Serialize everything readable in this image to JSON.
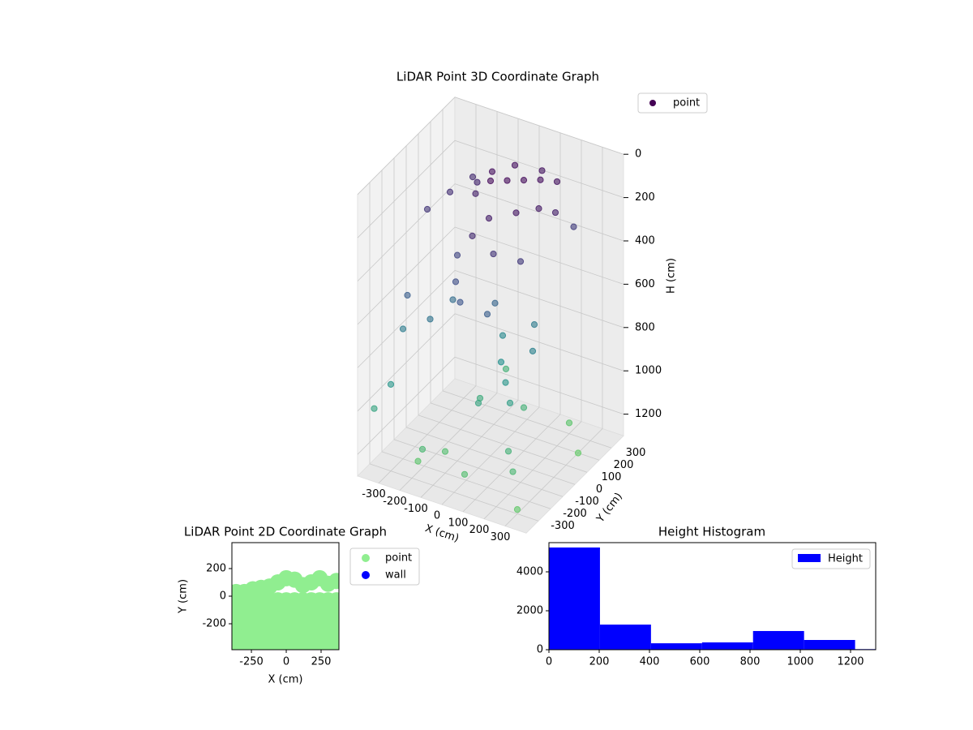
{
  "chart_data": [
    {
      "type": "scatter3d",
      "title": "LiDAR Point 3D Coordinate Graph",
      "xlabel": "X (cm)",
      "ylabel": "Y (cm)",
      "zlabel": "H (cm)",
      "xlim": [
        -400,
        400
      ],
      "ylim": [
        -400,
        400
      ],
      "zlim": [
        0,
        1300
      ],
      "zinverted": true,
      "xticks": [
        -300,
        -200,
        -100,
        0,
        100,
        200,
        300
      ],
      "yticks": [
        -300,
        -200,
        -100,
        0,
        100,
        200,
        300
      ],
      "zticks": [
        0,
        200,
        400,
        600,
        800,
        1000,
        1200
      ],
      "colormap": "viridis",
      "legend": "upper right",
      "series": [
        {
          "name": "point",
          "color": "#440154",
          "x": [
            0,
            50,
            100,
            150,
            200,
            -50,
            0,
            100,
            150,
            200,
            250,
            50,
            -100,
            -150,
            -200,
            -250,
            -300,
            0,
            100,
            200,
            250,
            -100,
            -50,
            0,
            100,
            50,
            -150,
            -200,
            150,
            200,
            0,
            -250,
            -300,
            50,
            100,
            150,
            0,
            -50,
            200,
            250,
            -100,
            -200,
            300,
            50,
            -150,
            -300,
            -350,
            100,
            200,
            300,
            -100
          ],
          "y": [
            0,
            50,
            100,
            150,
            200,
            100,
            200,
            250,
            -50,
            50,
            100,
            -100,
            50,
            150,
            200,
            100,
            0,
            -150,
            -150,
            -100,
            250,
            -100,
            -200,
            -250,
            -200,
            -50,
            -50,
            -150,
            100,
            0,
            100,
            -250,
            -200,
            0,
            -50,
            -100,
            -100,
            0,
            -200,
            -250,
            -200,
            -250,
            -300,
            -300,
            -300,
            -300,
            -350,
            100,
            300,
            200,
            300
          ],
          "values": [
            30,
            40,
            50,
            60,
            80,
            60,
            70,
            90,
            100,
            120,
            150,
            130,
            150,
            170,
            190,
            220,
            260,
            200,
            250,
            280,
            300,
            350,
            400,
            450,
            500,
            550,
            600,
            650,
            700,
            750,
            800,
            500,
            700,
            850,
            900,
            950,
            1000,
            1050,
            1100,
            1150,
            1200,
            1250,
            1280,
            1200,
            1150,
            900,
            1000,
            1100,
            1250,
            1300,
            1100
          ]
        }
      ]
    },
    {
      "type": "scatter",
      "title": "LiDAR Point 2D Coordinate Graph",
      "xlabel": "X (cm)",
      "ylabel": "Y (cm)",
      "xlim": [
        -390,
        378
      ],
      "ylim": [
        -388,
        388
      ],
      "xticks": [
        -250,
        0,
        250
      ],
      "yticks": [
        -200,
        0,
        200
      ],
      "legend": "outside right",
      "series": [
        {
          "name": "point",
          "color": "#90ee90",
          "x": [
            -360,
            -360,
            -360,
            -360,
            -360,
            -360,
            -300,
            -300,
            -300,
            -300,
            -300,
            -300,
            -240,
            -240,
            -240,
            -240,
            -240,
            -240,
            -180,
            -180,
            -180,
            -180,
            -180,
            -180,
            -120,
            -120,
            -120,
            -120,
            -120,
            -120,
            -60,
            -60,
            -60,
            -60,
            -60,
            -60,
            0,
            0,
            0,
            0,
            0,
            0,
            60,
            60,
            60,
            60,
            60,
            60,
            120,
            120,
            120,
            120,
            120,
            120,
            180,
            180,
            180,
            180,
            180,
            180,
            240,
            240,
            240,
            240,
            240,
            240,
            300,
            300,
            300,
            300,
            300,
            300,
            360,
            360,
            360,
            360,
            360,
            360
          ],
          "values": [
            -350,
            -270,
            -190,
            -110,
            -30,
            30,
            -350,
            -270,
            -190,
            -110,
            -30,
            30,
            -350,
            -270,
            -190,
            -110,
            -30,
            50,
            -350,
            -270,
            -190,
            -110,
            -30,
            60,
            -350,
            -270,
            -190,
            -110,
            -30,
            70,
            -350,
            -270,
            -190,
            -110,
            -30,
            100,
            -350,
            -270,
            -190,
            -110,
            -30,
            130,
            -350,
            -270,
            -190,
            -110,
            -30,
            120,
            -350,
            -270,
            -190,
            -110,
            -30,
            80,
            -350,
            -270,
            -190,
            -110,
            -30,
            100,
            -350,
            -270,
            -190,
            -110,
            -30,
            130,
            -350,
            -270,
            -190,
            -110,
            -30,
            90,
            -350,
            -270,
            -190,
            -110,
            -30,
            110
          ]
        },
        {
          "name": "wall",
          "color": "#0000ff",
          "x": [],
          "values": []
        }
      ]
    },
    {
      "type": "histogram",
      "title": "Height Histogram",
      "bins": [
        0,
        203,
        406,
        609,
        812,
        1015,
        1218,
        1421
      ],
      "xlim": [
        0,
        1300
      ],
      "ylim": [
        0,
        5500
      ],
      "xticks": [
        0,
        200,
        400,
        600,
        800,
        1000,
        1200
      ],
      "yticks": [
        0,
        2000,
        4000
      ],
      "legend": "upper right",
      "series": [
        {
          "name": "Height",
          "color": "#0000ff",
          "values": [
            5250,
            1290,
            330,
            375,
            960,
            500,
            30
          ]
        }
      ]
    }
  ]
}
